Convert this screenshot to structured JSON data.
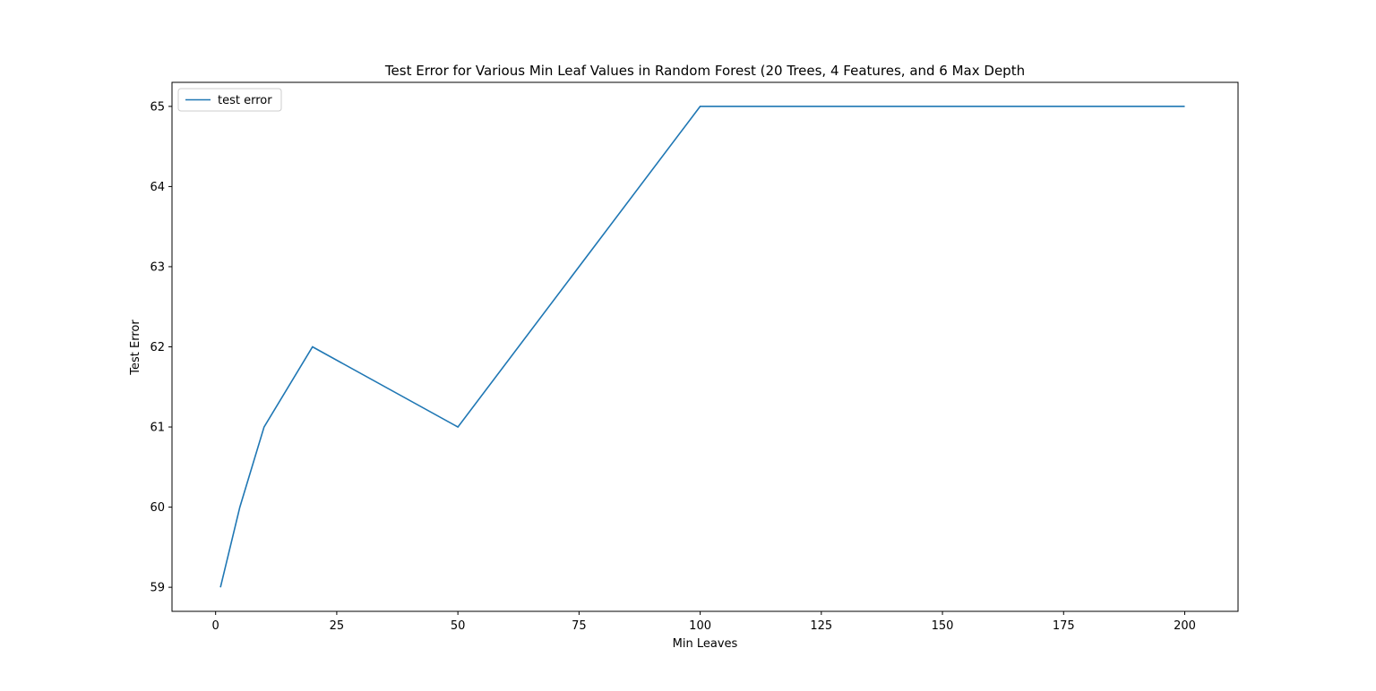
{
  "chart_data": {
    "type": "line",
    "title": "Test Error for Various Min Leaf Values in Random Forest (20 Trees, 4 Features, and 6 Max Depth",
    "xlabel": "Min Leaves",
    "ylabel": "Test Error",
    "xlim": [
      -9,
      211
    ],
    "ylim": [
      58.7,
      65.3
    ],
    "x_ticks": [
      0,
      25,
      50,
      75,
      100,
      125,
      150,
      175,
      200
    ],
    "y_ticks": [
      59,
      60,
      61,
      62,
      63,
      64,
      65
    ],
    "grid": false,
    "legend_position": "upper-left",
    "series": [
      {
        "name": "test error",
        "color": "#1f77b4",
        "x": [
          1,
          5,
          10,
          20,
          50,
          100,
          200
        ],
        "y": [
          59,
          60,
          61,
          62,
          61,
          65,
          65
        ]
      }
    ]
  }
}
